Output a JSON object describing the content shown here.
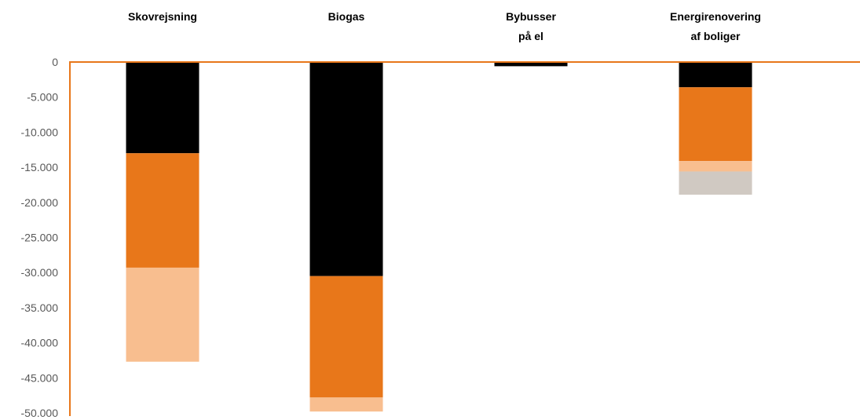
{
  "chart_data": {
    "type": "bar",
    "stacked": true,
    "categories": [
      [
        "Skovrejsning"
      ],
      [
        "Biogas"
      ],
      [
        "Bybusser",
        "på el"
      ],
      [
        "Energirenovering",
        "af boliger"
      ]
    ],
    "series": [
      {
        "color": "#000000",
        "values": [
          -13000,
          -30500,
          -600,
          -3600
        ]
      },
      {
        "color": "#E8771A",
        "values": [
          -16300,
          -17300,
          0,
          -10500
        ]
      },
      {
        "color": "#F8BE8F",
        "values": [
          -13400,
          -2000,
          0,
          -1500
        ]
      },
      {
        "color": "#D0C9C2",
        "values": [
          0,
          0,
          0,
          -3300
        ]
      }
    ],
    "yticks": [
      "0",
      "-5.000",
      "-10.000",
      "-15.000",
      "-20.000",
      "-25.000",
      "-30.000",
      "-35.000",
      "-40.000",
      "-45.000",
      "-50.000"
    ],
    "ylim": [
      -50000,
      0
    ],
    "axis_color": "#E8771A",
    "category_labels_position": "top",
    "legend": "none",
    "grid": false
  }
}
